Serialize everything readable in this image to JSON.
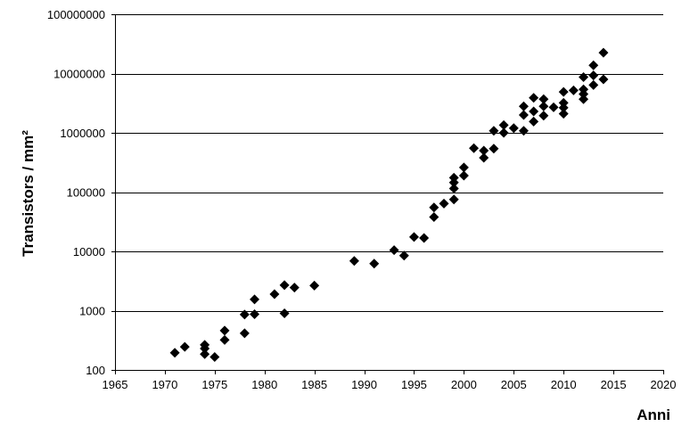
{
  "chart_data": {
    "type": "scatter",
    "title": "",
    "xlabel": "Anni",
    "ylabel": "Transistors / mm²",
    "x_scale": "linear",
    "y_scale": "log",
    "xlim": [
      1965,
      2020
    ],
    "ylim": [
      100,
      100000000
    ],
    "x_ticks": [
      1965,
      1970,
      1975,
      1980,
      1985,
      1990,
      1995,
      2000,
      2005,
      2010,
      2015,
      2020
    ],
    "y_ticks": [
      100,
      1000,
      10000,
      100000,
      1000000,
      10000000,
      100000000
    ],
    "x_tick_labels": [
      "1965",
      "1970",
      "1975",
      "1980",
      "1985",
      "1990",
      "1995",
      "2000",
      "2005",
      "2010",
      "2015",
      "2020"
    ],
    "y_tick_labels": [
      "100",
      "1000",
      "10000",
      "100000",
      "1000000",
      "10000000",
      "100000000"
    ],
    "grid": "horizontal",
    "marker": "diamond",
    "marker_color": "#000000",
    "legend": "none",
    "series": [
      {
        "points": [
          [
            1971,
            195
          ],
          [
            1972,
            245
          ],
          [
            1974,
            265
          ],
          [
            1974,
            230
          ],
          [
            1974,
            185
          ],
          [
            1975,
            165
          ],
          [
            1976,
            460
          ],
          [
            1976,
            320
          ],
          [
            1978,
            860
          ],
          [
            1978,
            415
          ],
          [
            1979,
            1550
          ],
          [
            1979,
            870
          ],
          [
            1981,
            1900
          ],
          [
            1982,
            2700
          ],
          [
            1982,
            900
          ],
          [
            1983,
            2450
          ],
          [
            1985,
            2650
          ],
          [
            1989,
            6900
          ],
          [
            1991,
            6200
          ],
          [
            1993,
            10500
          ],
          [
            1994,
            8500
          ],
          [
            1995,
            17500
          ],
          [
            1996,
            16800
          ],
          [
            1997,
            55000
          ],
          [
            1997,
            38000
          ],
          [
            1998,
            64000
          ],
          [
            1999,
            175000
          ],
          [
            1999,
            145000
          ],
          [
            1999,
            115000
          ],
          [
            1999,
            75000
          ],
          [
            2000,
            260000
          ],
          [
            2000,
            190000
          ],
          [
            2001,
            550000
          ],
          [
            2002,
            500000
          ],
          [
            2002,
            380000
          ],
          [
            2003,
            1080000
          ],
          [
            2003,
            540000
          ],
          [
            2004,
            1350000
          ],
          [
            2004,
            1000000
          ],
          [
            2005,
            1200000
          ],
          [
            2006,
            2800000
          ],
          [
            2006,
            2000000
          ],
          [
            2006,
            1080000
          ],
          [
            2007,
            3900000
          ],
          [
            2007,
            2300000
          ],
          [
            2007,
            1550000
          ],
          [
            2008,
            3700000
          ],
          [
            2008,
            2800000
          ],
          [
            2008,
            1950000
          ],
          [
            2009,
            2700000
          ],
          [
            2010,
            4900000
          ],
          [
            2010,
            3200000
          ],
          [
            2010,
            2650000
          ],
          [
            2010,
            2100000
          ],
          [
            2011,
            5200000
          ],
          [
            2012,
            8700000
          ],
          [
            2012,
            5400000
          ],
          [
            2012,
            4500000
          ],
          [
            2012,
            3700000
          ],
          [
            2013,
            13800000
          ],
          [
            2013,
            9300000
          ],
          [
            2013,
            6400000
          ],
          [
            2014,
            22500000
          ],
          [
            2014,
            8000000
          ]
        ]
      }
    ]
  }
}
